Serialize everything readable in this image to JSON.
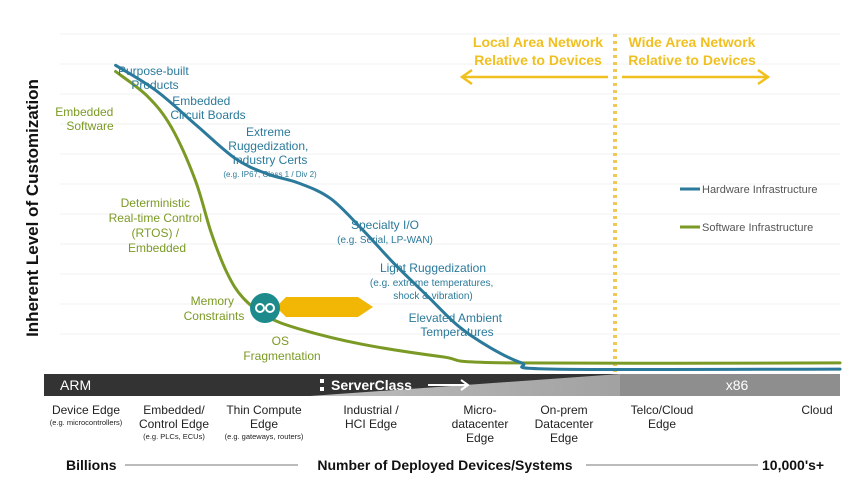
{
  "chart_data": {
    "type": "line",
    "ylabel": "Inherent Level of Customization",
    "xlabel": "Number of Deployed Devices/Systems",
    "x_scale_start": "Billions",
    "x_scale_end": "10,000's+",
    "network_regions": {
      "local": [
        "Local Area Network",
        "Relative to Devices"
      ],
      "wide": [
        "Wide Area Network",
        "Relative to Devices"
      ]
    },
    "legend": [
      {
        "label": "Hardware Infrastructure",
        "color": "#2b7a9b"
      },
      {
        "label": "Software Infrastructure",
        "color": "#7b9a25"
      }
    ],
    "architecture_bar": {
      "left": "ARM",
      "middle": "ServerClass",
      "right": "x86"
    },
    "categories": [
      {
        "main": [
          "Device Edge"
        ],
        "sub": [
          "(e.g. microcontrollers)"
        ]
      },
      {
        "main": [
          "Embedded/",
          "Control Edge"
        ],
        "sub": [
          "(e.g. PLCs, ECUs)"
        ]
      },
      {
        "main": [
          "Thin Compute",
          "Edge"
        ],
        "sub": [
          "(e.g. gateways, routers)"
        ]
      },
      {
        "main": [
          "Industrial  /",
          "HCI Edge"
        ],
        "sub": []
      },
      {
        "main": [
          "Micro-",
          "datacenter",
          "Edge"
        ],
        "sub": []
      },
      {
        "main": [
          "On-prem",
          "Datacenter",
          "Edge"
        ],
        "sub": []
      },
      {
        "main": [
          "Telco/Cloud",
          "Edge"
        ],
        "sub": []
      },
      {
        "main": [
          "Cloud"
        ],
        "sub": []
      }
    ],
    "annotations_blue": [
      {
        "lines": [
          "Purpose-built",
          "Products"
        ],
        "sub": []
      },
      {
        "lines": [
          "Embedded",
          "Circuit Boards"
        ],
        "sub": []
      },
      {
        "lines": [
          "Extreme",
          "Ruggedization,",
          "Industry Certs"
        ],
        "sub": [
          "(e.g. IP67,  Class 1 / Div 2)"
        ]
      },
      {
        "lines": [
          "Specialty I/O"
        ],
        "sub": [
          "(e.g. Serial, LP-WAN)"
        ]
      },
      {
        "lines": [
          "Light Ruggedization"
        ],
        "sub": [
          "(e.g. extreme temperatures,",
          "shock & vibration)"
        ]
      },
      {
        "lines": [
          "Elevated Ambient",
          "Temperatures"
        ],
        "sub": []
      }
    ],
    "annotations_green": [
      {
        "lines": [
          "Embedded",
          "Software"
        ]
      },
      {
        "lines": [
          "Deterministic",
          "Real-time Control",
          "(RTOS) /",
          "Embedded"
        ]
      },
      {
        "lines": [
          "Memory",
          "Constraints"
        ]
      },
      {
        "lines": [
          "OS",
          "Fragmentation"
        ]
      }
    ],
    "series": [
      {
        "name": "Hardware Infrastructure",
        "points": [
          [
            0.09,
            0.97
          ],
          [
            0.14,
            0.89
          ],
          [
            0.19,
            0.78
          ],
          [
            0.24,
            0.67
          ],
          [
            0.28,
            0.62
          ],
          [
            0.32,
            0.59
          ],
          [
            0.36,
            0.54
          ],
          [
            0.4,
            0.44
          ],
          [
            0.44,
            0.33
          ],
          [
            0.48,
            0.23
          ],
          [
            0.52,
            0.13
          ],
          [
            0.56,
            0.06
          ],
          [
            0.6,
            0.01
          ],
          [
            0.64,
            -0.01
          ],
          [
            1.0,
            -0.01
          ]
        ]
      },
      {
        "name": "Software Infrastructure",
        "points": [
          [
            0.09,
            0.95
          ],
          [
            0.13,
            0.87
          ],
          [
            0.16,
            0.77
          ],
          [
            0.19,
            0.6
          ],
          [
            0.21,
            0.43
          ],
          [
            0.23,
            0.3
          ],
          [
            0.25,
            0.22
          ],
          [
            0.28,
            0.16
          ],
          [
            0.32,
            0.12
          ],
          [
            0.4,
            0.07
          ],
          [
            0.5,
            0.03
          ],
          [
            0.58,
            0.01
          ],
          [
            1.0,
            0.01
          ]
        ]
      }
    ]
  }
}
